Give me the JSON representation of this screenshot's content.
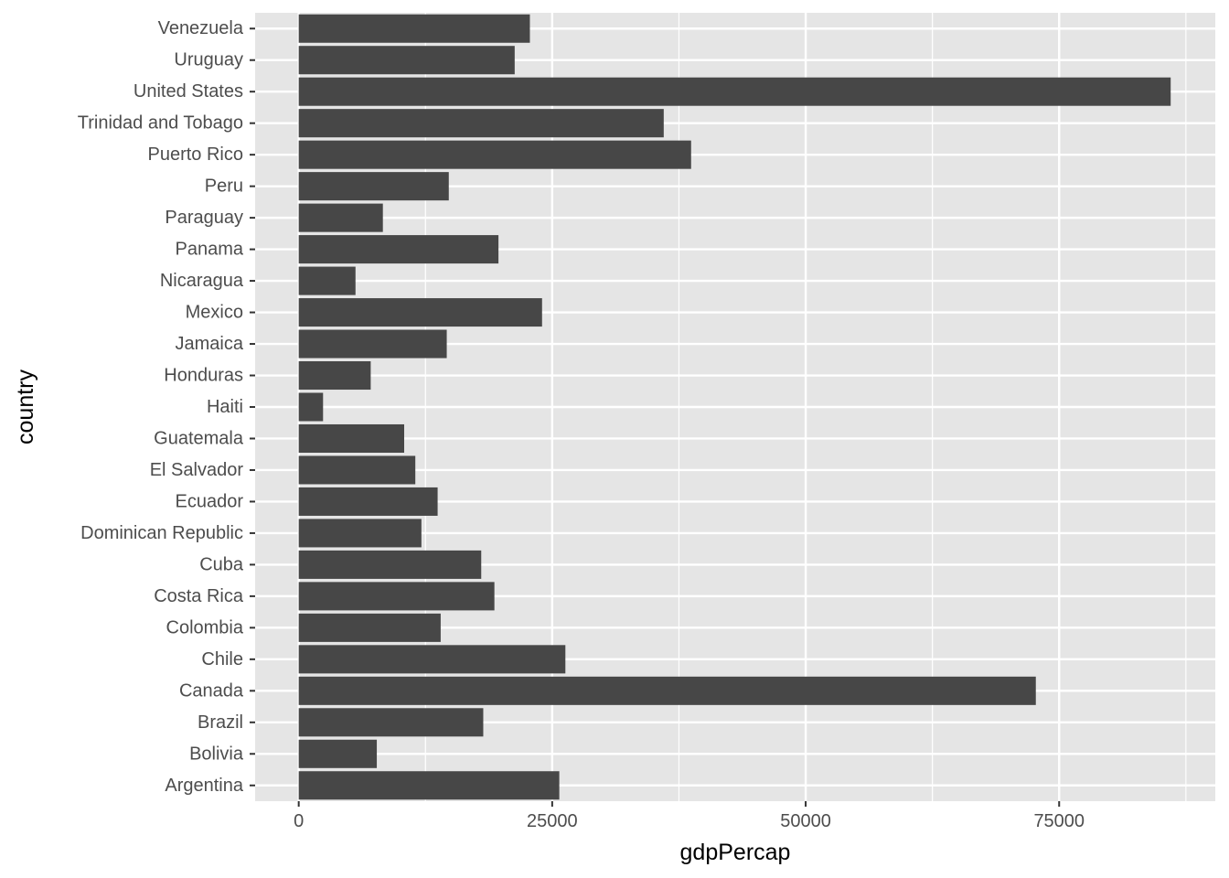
{
  "chart_data": {
    "type": "bar",
    "orientation": "horizontal",
    "title": "",
    "xlabel": "gdpPercap",
    "ylabel": "country",
    "categories": [
      "Argentina",
      "Bolivia",
      "Brazil",
      "Canada",
      "Chile",
      "Colombia",
      "Costa Rica",
      "Cuba",
      "Dominican Republic",
      "Ecuador",
      "El Salvador",
      "Guatemala",
      "Haiti",
      "Honduras",
      "Jamaica",
      "Mexico",
      "Nicaragua",
      "Panama",
      "Paraguay",
      "Peru",
      "Puerto Rico",
      "Trinidad and Tobago",
      "United States",
      "Uruguay",
      "Venezuela"
    ],
    "values": [
      25700,
      7700,
      18200,
      72700,
      26300,
      14000,
      19300,
      18000,
      12100,
      13700,
      11500,
      10400,
      2400,
      7100,
      14600,
      24000,
      5600,
      19700,
      8300,
      14800,
      38700,
      36000,
      86000,
      21300,
      22800
    ],
    "xlim": [
      -4300,
      90400
    ],
    "x_ticks": [
      0,
      25000,
      50000,
      75000
    ],
    "x_tick_labels": [
      "0",
      "25000",
      "50000",
      "75000"
    ],
    "grid": true,
    "bar_color": "#474747",
    "panel_background": "#e5e5e5",
    "grid_color": "#ffffff"
  }
}
